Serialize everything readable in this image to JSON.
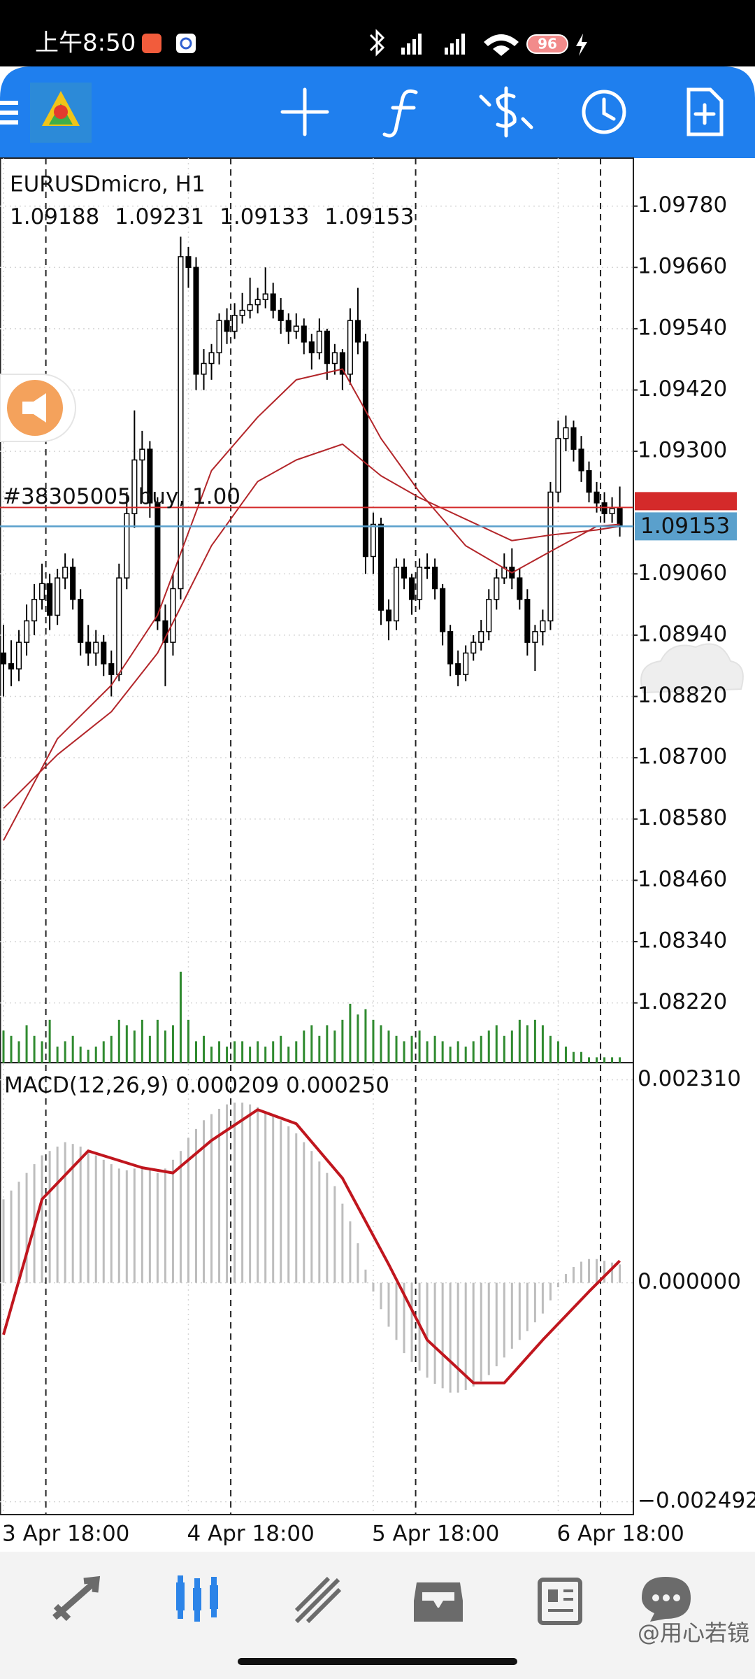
{
  "status_bar": {
    "time": "上午8:50",
    "battery": "96"
  },
  "watermark": "@用心若镜",
  "chart_data": {
    "type": "candlestick",
    "symbol": "EURUSDmicro, H1",
    "ylim": [
      1.08103,
      1.09874
    ],
    "yticks": [
      {
        "value": 1.0978,
        "label": "1.09780"
      },
      {
        "value": 1.0966,
        "label": "1.09660"
      },
      {
        "value": 1.0954,
        "label": "1.09540"
      },
      {
        "value": 1.0942,
        "label": "1.09420"
      },
      {
        "value": 1.093,
        "label": "1.09300"
      },
      {
        "value": 1.0906,
        "label": "1.09060"
      },
      {
        "value": 1.0894,
        "label": "1.08940"
      },
      {
        "value": 1.0882,
        "label": "1.08820"
      },
      {
        "value": 1.087,
        "label": "1.08700"
      },
      {
        "value": 1.0858,
        "label": "1.08580"
      },
      {
        "value": 1.0846,
        "label": "1.08460"
      },
      {
        "value": 1.0834,
        "label": "1.08340"
      },
      {
        "value": 1.0822,
        "label": "1.08220"
      }
    ],
    "grid": true,
    "categories": [
      "3 Apr 18:00",
      null,
      null,
      null,
      null,
      null,
      null,
      null,
      null,
      null,
      null,
      null,
      null,
      null,
      null,
      null,
      null,
      null,
      null,
      null,
      null,
      null,
      null,
      null,
      "4 Apr 18:00",
      null,
      null,
      null,
      null,
      null,
      null,
      null,
      null,
      null,
      null,
      null,
      null,
      null,
      null,
      null,
      null,
      null,
      null,
      null,
      null,
      null,
      null,
      null,
      "5 Apr 18:00",
      null,
      null,
      null,
      null,
      null,
      null,
      null,
      null,
      null,
      null,
      null,
      null,
      null,
      null,
      null,
      null,
      null,
      null,
      null,
      null,
      null,
      null,
      null,
      "6 Apr 18:00",
      null,
      null,
      null,
      null,
      null,
      null,
      null,
      null
    ],
    "candles": [
      [
        1.08905,
        1.0896,
        1.0882,
        1.08884
      ],
      [
        1.08884,
        1.0893,
        1.0884,
        1.08874
      ],
      [
        1.08874,
        1.0895,
        1.0885,
        1.08926
      ],
      [
        1.08926,
        1.09,
        1.089,
        1.08968
      ],
      [
        1.08968,
        1.0904,
        1.0894,
        1.0901
      ],
      [
        1.0901,
        1.0908,
        1.0899,
        1.09041
      ],
      [
        1.09041,
        1.0906,
        1.0895,
        1.08979
      ],
      [
        1.08979,
        1.0907,
        1.0896,
        1.09052
      ],
      [
        1.09052,
        1.091,
        1.0903,
        1.09073
      ],
      [
        1.09073,
        1.0909,
        1.0899,
        1.0901
      ],
      [
        1.0901,
        1.0903,
        1.089,
        1.08926
      ],
      [
        1.08926,
        1.0896,
        1.0888,
        1.08905
      ],
      [
        1.08905,
        1.0895,
        1.0888,
        1.08926
      ],
      [
        1.08926,
        1.0894,
        1.0886,
        1.08884
      ],
      [
        1.08884,
        1.0891,
        1.0882,
        1.08863
      ],
      [
        1.08863,
        1.0908,
        1.0885,
        1.09052
      ],
      [
        1.09052,
        1.0922,
        1.0903,
        1.09178
      ],
      [
        1.09178,
        1.0938,
        1.0915,
        1.09283
      ],
      [
        1.09283,
        1.0934,
        1.092,
        1.09304
      ],
      [
        1.09304,
        1.0932,
        1.0917,
        1.09199
      ],
      [
        1.09199,
        1.0921,
        1.0895,
        1.08968
      ],
      [
        1.08968,
        1.09,
        1.0884,
        1.08926
      ],
      [
        1.08926,
        1.0906,
        1.089,
        1.09031
      ],
      [
        1.09031,
        1.0972,
        1.0901,
        1.09681
      ],
      [
        1.09681,
        1.097,
        1.0962,
        1.0966
      ],
      [
        1.0966,
        1.0968,
        1.0942,
        1.09451
      ],
      [
        1.09451,
        1.095,
        1.0942,
        1.09472
      ],
      [
        1.09472,
        1.0951,
        1.0944,
        1.09493
      ],
      [
        1.09493,
        1.0957,
        1.0947,
        1.09556
      ],
      [
        1.09556,
        1.0958,
        1.0951,
        1.09535
      ],
      [
        1.09535,
        1.0959,
        1.0952,
        1.09566
      ],
      [
        1.09566,
        1.0961,
        1.0955,
        1.09576
      ],
      [
        1.09576,
        1.0964,
        1.0956,
        1.09587
      ],
      [
        1.09587,
        1.0962,
        1.0957,
        1.09597
      ],
      [
        1.09597,
        1.0966,
        1.0958,
        1.09608
      ],
      [
        1.09608,
        1.0963,
        1.0956,
        1.09576
      ],
      [
        1.09576,
        1.096,
        1.0953,
        1.09556
      ],
      [
        1.09556,
        1.0957,
        1.0951,
        1.09535
      ],
      [
        1.09535,
        1.0957,
        1.0952,
        1.09545
      ],
      [
        1.09545,
        1.0956,
        1.0949,
        1.09514
      ],
      [
        1.09514,
        1.0953,
        1.0946,
        1.09493
      ],
      [
        1.09493,
        1.0956,
        1.0948,
        1.09535
      ],
      [
        1.09535,
        1.0954,
        1.0944,
        1.09472
      ],
      [
        1.09472,
        1.0951,
        1.0945,
        1.09493
      ],
      [
        1.09493,
        1.095,
        1.0942,
        1.09451
      ],
      [
        1.09451,
        1.0958,
        1.0943,
        1.09556
      ],
      [
        1.09556,
        1.0962,
        1.0949,
        1.09514
      ],
      [
        1.09514,
        1.0953,
        1.0906,
        1.09094
      ],
      [
        1.09094,
        1.0918,
        1.0906,
        1.09157
      ],
      [
        1.09157,
        1.0917,
        1.0896,
        1.08989
      ],
      [
        1.08989,
        1.0901,
        1.0893,
        1.08968
      ],
      [
        1.08968,
        1.0909,
        1.0895,
        1.09073
      ],
      [
        1.09073,
        1.0909,
        1.0903,
        1.09052
      ],
      [
        1.09052,
        1.0906,
        1.0898,
        1.0901
      ],
      [
        1.0901,
        1.0909,
        1.0899,
        1.09073
      ],
      [
        1.09073,
        1.091,
        1.0905,
        1.09073
      ],
      [
        1.09073,
        1.0909,
        1.0901,
        1.09031
      ],
      [
        1.09031,
        1.0904,
        1.0892,
        1.08947
      ],
      [
        1.08947,
        1.0896,
        1.0886,
        1.08884
      ],
      [
        1.08884,
        1.0891,
        1.0884,
        1.08863
      ],
      [
        1.08863,
        1.0892,
        1.0885,
        1.08905
      ],
      [
        1.08905,
        1.0894,
        1.0889,
        1.08926
      ],
      [
        1.08926,
        1.0897,
        1.0891,
        1.08947
      ],
      [
        1.08947,
        1.0903,
        1.0893,
        1.0901
      ],
      [
        1.0901,
        1.0907,
        1.0899,
        1.09052
      ],
      [
        1.09052,
        1.091,
        1.0904,
        1.09073
      ],
      [
        1.09073,
        1.0911,
        1.0903,
        1.09052
      ],
      [
        1.09052,
        1.0907,
        1.0899,
        1.0901
      ],
      [
        1.0901,
        1.0903,
        1.089,
        1.08926
      ],
      [
        1.08926,
        1.0896,
        1.0887,
        1.08947
      ],
      [
        1.08947,
        1.0899,
        1.0892,
        1.08968
      ],
      [
        1.08968,
        1.0924,
        1.0895,
        1.0922
      ],
      [
        1.0922,
        1.0936,
        1.092,
        1.09325
      ],
      [
        1.09325,
        1.0937,
        1.093,
        1.09346
      ],
      [
        1.09346,
        1.0936,
        1.0928,
        1.09304
      ],
      [
        1.09304,
        1.0933,
        1.0924,
        1.09262
      ],
      [
        1.09262,
        1.0928,
        1.092,
        1.0922
      ],
      [
        1.0922,
        1.0924,
        1.0918,
        1.09199
      ],
      [
        1.09199,
        1.0922,
        1.0916,
        1.09178
      ],
      [
        1.09178,
        1.0921,
        1.0916,
        1.09188
      ],
      [
        1.09188,
        1.09231,
        1.09133,
        1.09153
      ]
    ],
    "candle_colors": {
      "up": "#ffffff",
      "down": "#000000",
      "outline": "#000000"
    },
    "moving_averages": [
      {
        "color": "#b3262a",
        "x": [
          0,
          7,
          14,
          20,
          27,
          33,
          38,
          44,
          49,
          54,
          60,
          66,
          71,
          77,
          80
        ],
        "values": [
          1.08538,
          1.08737,
          1.08842,
          1.08979,
          1.09262,
          1.09367,
          1.0944,
          1.09461,
          1.09325,
          1.0922,
          1.09115,
          1.09062,
          1.09104,
          1.09153,
          1.09157
        ]
      },
      {
        "color": "#b3262a",
        "x": [
          0,
          7,
          14,
          20,
          27,
          33,
          38,
          44,
          49,
          54,
          60,
          66,
          71,
          77,
          80
        ],
        "values": [
          1.08601,
          1.08706,
          1.0879,
          1.08905,
          1.09115,
          1.09241,
          1.09283,
          1.09314,
          1.09252,
          1.09209,
          1.09167,
          1.09125,
          1.09136,
          1.09146,
          1.09153
        ]
      }
    ],
    "volume": {
      "color": "#2f8a2f",
      "values": [
        30,
        25,
        20,
        35,
        25,
        20,
        40,
        15,
        20,
        25,
        15,
        12,
        15,
        20,
        25,
        40,
        35,
        30,
        40,
        25,
        40,
        30,
        35,
        85,
        40,
        20,
        25,
        15,
        20,
        15,
        20,
        20,
        15,
        20,
        15,
        20,
        25,
        15,
        20,
        30,
        35,
        25,
        35,
        30,
        40,
        55,
        45,
        50,
        40,
        35,
        30,
        25,
        20,
        25,
        30,
        20,
        25,
        20,
        15,
        20,
        15,
        20,
        25,
        30,
        35,
        25,
        30,
        40,
        35,
        40,
        35,
        25,
        20,
        15,
        10,
        10,
        5,
        5,
        5,
        5,
        5
      ]
    },
    "position": {
      "label": "#38305005 buy, 1.00",
      "price": 1.0919,
      "color": "#d42a2a"
    },
    "bid_color": "#5aa0cc",
    "macd": {
      "label": "MACD(12,26,9) 0.000209 0.000250",
      "ylim": [
        -0.002638,
        0.002505
      ],
      "yticks": [
        {
          "value": 0.00231,
          "label": "0.002310"
        },
        {
          "value": 0,
          "label": "0.000000"
        },
        {
          "value": -0.002492,
          "label": "−0.002492"
        }
      ],
      "histogram_color": "#bdbdbd",
      "histogram": [
        0.00095,
        0.00105,
        0.00115,
        0.00125,
        0.00135,
        0.00145,
        0.0015,
        0.00155,
        0.0016,
        0.00158,
        0.00155,
        0.0015,
        0.00145,
        0.0014,
        0.00135,
        0.0013,
        0.00128,
        0.0013,
        0.00132,
        0.00128,
        0.00125,
        0.0013,
        0.0014,
        0.0015,
        0.00165,
        0.00175,
        0.00185,
        0.00192,
        0.00198,
        0.00203,
        0.00205,
        0.00205,
        0.00203,
        0.002,
        0.00195,
        0.0019,
        0.00185,
        0.00178,
        0.0017,
        0.0016,
        0.0015,
        0.00138,
        0.00125,
        0.0011,
        0.0009,
        0.0007,
        0.00045,
        0.00015,
        -0.0001,
        -0.0003,
        -0.0005,
        -0.00065,
        -0.0008,
        -0.0009,
        -0.001,
        -0.00108,
        -0.00115,
        -0.0012,
        -0.00125,
        -0.00125,
        -0.00122,
        -0.00118,
        -0.00112,
        -0.00105,
        -0.00095,
        -0.00085,
        -0.00075,
        -0.00065,
        -0.00055,
        -0.00045,
        -0.00035,
        -0.0002,
        -5e-05,
        0.0001,
        0.00018,
        0.00024,
        0.00027,
        0.00027,
        0.00025,
        0.00023,
        0.000209
      ],
      "signal_color": "#c0161e",
      "signal": {
        "x": [
          0,
          5,
          11,
          18,
          22,
          27,
          33,
          38,
          44,
          50,
          55,
          61,
          65,
          70,
          76,
          80
        ],
        "values": [
          -0.00059,
          0.00095,
          0.0015,
          0.00131,
          0.00125,
          0.00162,
          0.00197,
          0.00181,
          0.00119,
          0.00021,
          -0.00065,
          -0.00114,
          -0.00114,
          -0.00065,
          -0.0001,
          0.00025
        ]
      }
    }
  }
}
